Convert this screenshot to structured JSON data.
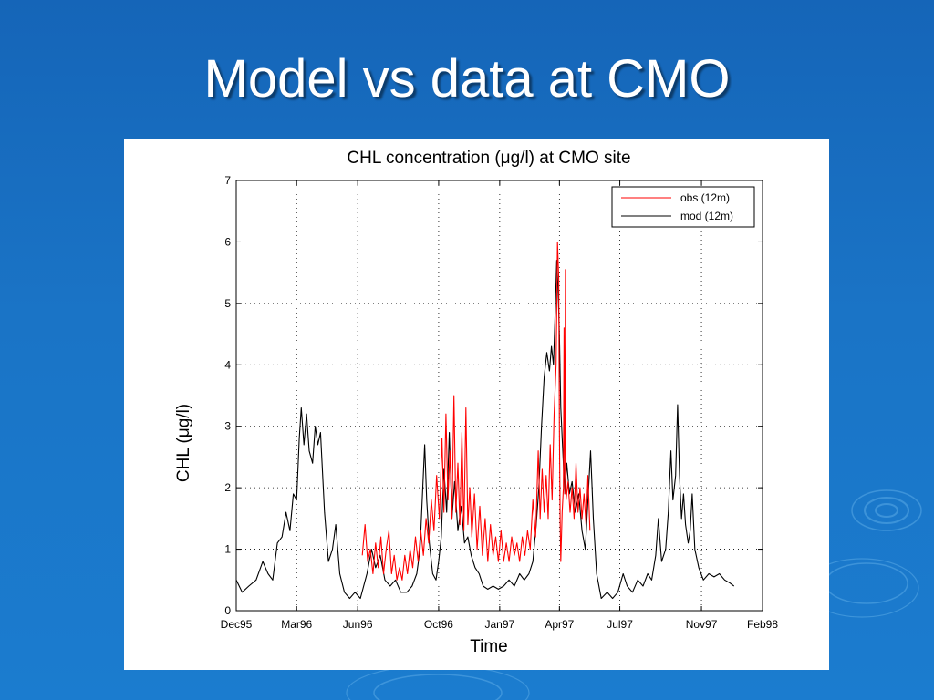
{
  "slide": {
    "title": "Model vs data at CMO"
  },
  "colors": {
    "background": "#1a6fc1",
    "title_text": "#ffffff",
    "obs": "#ff0000",
    "mod": "#000000"
  },
  "chart_data": {
    "type": "line",
    "title": "CHL concentration (μg/l) at CMO site",
    "xlabel": "Time",
    "ylabel": "CHL (μg/l)",
    "xlim": [
      "1995-12-01",
      "1998-02-01"
    ],
    "ylim": [
      0,
      7
    ],
    "x_ticks": [
      {
        "date": "1995-12-01",
        "label": "Dec95"
      },
      {
        "date": "1996-03-01",
        "label": "Mar96"
      },
      {
        "date": "1996-06-01",
        "label": "Jun96"
      },
      {
        "date": "1996-10-01",
        "label": "Oct96"
      },
      {
        "date": "1997-01-01",
        "label": "Jan97"
      },
      {
        "date": "1997-04-01",
        "label": "Apr97"
      },
      {
        "date": "1997-07-01",
        "label": "Jul97"
      },
      {
        "date": "1997-11-01",
        "label": "Nov97"
      },
      {
        "date": "1998-02-01",
        "label": "Feb98"
      }
    ],
    "y_ticks": [
      0,
      1,
      2,
      3,
      4,
      5,
      6,
      7
    ],
    "grid": true,
    "legend_position": "top-right",
    "series": [
      {
        "name": "obs (12m)",
        "color": "#ff0000",
        "points": [
          [
            "1996-06-08",
            0.9
          ],
          [
            "1996-06-12",
            1.4
          ],
          [
            "1996-06-16",
            0.8
          ],
          [
            "1996-06-20",
            1.0
          ],
          [
            "1996-06-24",
            0.6
          ],
          [
            "1996-06-28",
            1.1
          ],
          [
            "1996-07-02",
            0.7
          ],
          [
            "1996-07-06",
            1.2
          ],
          [
            "1996-07-10",
            0.6
          ],
          [
            "1996-07-14",
            1.0
          ],
          [
            "1996-07-18",
            1.3
          ],
          [
            "1996-07-22",
            0.6
          ],
          [
            "1996-07-26",
            0.9
          ],
          [
            "1996-07-30",
            0.5
          ],
          [
            "1996-08-03",
            0.7
          ],
          [
            "1996-08-07",
            0.5
          ],
          [
            "1996-08-11",
            0.9
          ],
          [
            "1996-08-15",
            0.6
          ],
          [
            "1996-08-19",
            1.0
          ],
          [
            "1996-08-23",
            0.7
          ],
          [
            "1996-08-27",
            1.2
          ],
          [
            "1996-08-31",
            0.8
          ],
          [
            "1996-09-04",
            1.3
          ],
          [
            "1996-09-08",
            0.9
          ],
          [
            "1996-09-12",
            1.5
          ],
          [
            "1996-09-16",
            1.1
          ],
          [
            "1996-09-20",
            1.8
          ],
          [
            "1996-09-24",
            1.3
          ],
          [
            "1996-09-28",
            2.2
          ],
          [
            "1996-10-02",
            1.5
          ],
          [
            "1996-10-06",
            2.8
          ],
          [
            "1996-10-09",
            1.6
          ],
          [
            "1996-10-12",
            3.2
          ],
          [
            "1996-10-15",
            1.8
          ],
          [
            "1996-10-18",
            2.6
          ],
          [
            "1996-10-21",
            1.5
          ],
          [
            "1996-10-24",
            3.5
          ],
          [
            "1996-10-27",
            1.6
          ],
          [
            "1996-10-30",
            2.4
          ],
          [
            "1996-11-02",
            1.4
          ],
          [
            "1996-11-05",
            2.9
          ],
          [
            "1996-11-08",
            1.3
          ],
          [
            "1996-11-11",
            3.3
          ],
          [
            "1996-11-14",
            1.4
          ],
          [
            "1996-11-17",
            2.0
          ],
          [
            "1996-11-20",
            1.2
          ],
          [
            "1996-11-24",
            1.9
          ],
          [
            "1996-11-28",
            1.0
          ],
          [
            "1996-12-02",
            1.7
          ],
          [
            "1996-12-06",
            0.9
          ],
          [
            "1996-12-10",
            1.5
          ],
          [
            "1996-12-14",
            0.8
          ],
          [
            "1996-12-18",
            1.4
          ],
          [
            "1996-12-22",
            0.9
          ],
          [
            "1996-12-26",
            1.2
          ],
          [
            "1996-12-30",
            0.8
          ],
          [
            "1997-01-03",
            1.3
          ],
          [
            "1997-01-07",
            0.8
          ],
          [
            "1997-01-11",
            1.1
          ],
          [
            "1997-01-15",
            0.8
          ],
          [
            "1997-01-19",
            1.2
          ],
          [
            "1997-01-23",
            0.9
          ],
          [
            "1997-01-27",
            1.1
          ],
          [
            "1997-01-31",
            0.8
          ],
          [
            "1997-02-04",
            1.2
          ],
          [
            "1997-02-08",
            0.9
          ],
          [
            "1997-02-12",
            1.3
          ],
          [
            "1997-02-16",
            1.0
          ],
          [
            "1997-02-20",
            1.8
          ],
          [
            "1997-02-24",
            1.2
          ],
          [
            "1997-02-28",
            2.6
          ],
          [
            "1997-03-03",
            1.5
          ],
          [
            "1997-03-06",
            2.3
          ],
          [
            "1997-03-09",
            1.6
          ],
          [
            "1997-03-12",
            2.2
          ],
          [
            "1997-03-15",
            1.5
          ],
          [
            "1997-03-18",
            2.7
          ],
          [
            "1997-03-21",
            1.8
          ],
          [
            "1997-03-24",
            3.2
          ],
          [
            "1997-03-27",
            4.0
          ],
          [
            "1997-03-29",
            6.0
          ],
          [
            "1997-03-31",
            5.4
          ],
          [
            "1997-04-01",
            3.0
          ],
          [
            "1997-04-02",
            1.5
          ],
          [
            "1997-04-03",
            0.8
          ],
          [
            "1997-04-05",
            1.6
          ],
          [
            "1997-04-07",
            2.0
          ],
          [
            "1997-04-08",
            4.6
          ],
          [
            "1997-04-09",
            1.9
          ],
          [
            "1997-04-10",
            5.55
          ],
          [
            "1997-04-11",
            1.8
          ],
          [
            "1997-04-14",
            2.1
          ],
          [
            "1997-04-17",
            1.6
          ],
          [
            "1997-04-20",
            2.0
          ],
          [
            "1997-04-23",
            1.5
          ],
          [
            "1997-04-26",
            2.4
          ],
          [
            "1997-04-29",
            1.6
          ],
          [
            "1997-05-02",
            2.0
          ],
          [
            "1997-05-05",
            1.5
          ],
          [
            "1997-05-08",
            1.9
          ],
          [
            "1997-05-11",
            1.4
          ],
          [
            "1997-05-14",
            2.2
          ],
          [
            "1997-05-17",
            1.3
          ]
        ]
      },
      {
        "name": "mod (12m)",
        "color": "#000000",
        "points": [
          [
            "1995-12-01",
            0.5
          ],
          [
            "1995-12-10",
            0.3
          ],
          [
            "1995-12-20",
            0.4
          ],
          [
            "1995-12-31",
            0.5
          ],
          [
            "1996-01-10",
            0.8
          ],
          [
            "1996-01-18",
            0.6
          ],
          [
            "1996-01-25",
            0.5
          ],
          [
            "1996-02-01",
            1.1
          ],
          [
            "1996-02-08",
            1.2
          ],
          [
            "1996-02-14",
            1.6
          ],
          [
            "1996-02-20",
            1.3
          ],
          [
            "1996-02-25",
            1.9
          ],
          [
            "1996-03-01",
            1.8
          ],
          [
            "1996-03-05",
            2.8
          ],
          [
            "1996-03-08",
            3.3
          ],
          [
            "1996-03-12",
            2.7
          ],
          [
            "1996-03-16",
            3.2
          ],
          [
            "1996-03-20",
            2.6
          ],
          [
            "1996-03-25",
            2.4
          ],
          [
            "1996-03-29",
            3.0
          ],
          [
            "1996-04-02",
            2.7
          ],
          [
            "1996-04-06",
            2.9
          ],
          [
            "1996-04-12",
            1.6
          ],
          [
            "1996-04-18",
            0.8
          ],
          [
            "1996-04-24",
            1.0
          ],
          [
            "1996-04-29",
            1.4
          ],
          [
            "1996-05-05",
            0.6
          ],
          [
            "1996-05-12",
            0.3
          ],
          [
            "1996-05-20",
            0.2
          ],
          [
            "1996-05-28",
            0.3
          ],
          [
            "1996-06-05",
            0.2
          ],
          [
            "1996-06-10",
            0.4
          ],
          [
            "1996-06-15",
            0.6
          ],
          [
            "1996-06-22",
            1.0
          ],
          [
            "1996-06-28",
            0.7
          ],
          [
            "1996-07-05",
            0.9
          ],
          [
            "1996-07-12",
            0.5
          ],
          [
            "1996-07-20",
            0.4
          ],
          [
            "1996-07-28",
            0.5
          ],
          [
            "1996-08-05",
            0.3
          ],
          [
            "1996-08-14",
            0.3
          ],
          [
            "1996-08-22",
            0.4
          ],
          [
            "1996-08-29",
            0.6
          ],
          [
            "1996-09-03",
            1.0
          ],
          [
            "1996-09-07",
            2.0
          ],
          [
            "1996-09-10",
            2.7
          ],
          [
            "1996-09-13",
            1.8
          ],
          [
            "1996-09-17",
            1.1
          ],
          [
            "1996-09-22",
            0.6
          ],
          [
            "1996-09-27",
            0.5
          ],
          [
            "1996-10-01",
            0.8
          ],
          [
            "1996-10-05",
            1.2
          ],
          [
            "1996-10-09",
            2.3
          ],
          [
            "1996-10-13",
            1.6
          ],
          [
            "1996-10-17",
            2.9
          ],
          [
            "1996-10-21",
            1.5
          ],
          [
            "1996-10-25",
            2.1
          ],
          [
            "1996-10-30",
            1.3
          ],
          [
            "1996-11-04",
            1.7
          ],
          [
            "1996-11-09",
            1.1
          ],
          [
            "1996-11-14",
            1.2
          ],
          [
            "1996-11-19",
            0.9
          ],
          [
            "1996-11-25",
            0.7
          ],
          [
            "1996-12-01",
            0.6
          ],
          [
            "1996-12-07",
            0.4
          ],
          [
            "1996-12-14",
            0.35
          ],
          [
            "1996-12-22",
            0.4
          ],
          [
            "1996-12-30",
            0.35
          ],
          [
            "1997-01-07",
            0.4
          ],
          [
            "1997-01-15",
            0.5
          ],
          [
            "1997-01-23",
            0.4
          ],
          [
            "1997-01-31",
            0.6
          ],
          [
            "1997-02-07",
            0.5
          ],
          [
            "1997-02-14",
            0.6
          ],
          [
            "1997-02-20",
            0.8
          ],
          [
            "1997-02-25",
            1.4
          ],
          [
            "1997-03-01",
            2.0
          ],
          [
            "1997-03-05",
            3.0
          ],
          [
            "1997-03-09",
            3.8
          ],
          [
            "1997-03-13",
            4.2
          ],
          [
            "1997-03-17",
            3.9
          ],
          [
            "1997-03-20",
            4.3
          ],
          [
            "1997-03-23",
            4.0
          ],
          [
            "1997-03-26",
            5.0
          ],
          [
            "1997-03-28",
            5.7
          ],
          [
            "1997-03-30",
            5.2
          ],
          [
            "1997-04-01",
            4.5
          ],
          [
            "1997-04-03",
            3.3
          ],
          [
            "1997-04-06",
            2.6
          ],
          [
            "1997-04-09",
            1.9
          ],
          [
            "1997-04-12",
            2.4
          ],
          [
            "1997-04-16",
            1.9
          ],
          [
            "1997-04-20",
            2.1
          ],
          [
            "1997-04-25",
            1.6
          ],
          [
            "1997-04-30",
            1.9
          ],
          [
            "1997-05-05",
            1.3
          ],
          [
            "1997-05-10",
            1.0
          ],
          [
            "1997-05-14",
            1.8
          ],
          [
            "1997-05-18",
            2.6
          ],
          [
            "1997-05-22",
            1.5
          ],
          [
            "1997-05-27",
            0.6
          ],
          [
            "1997-06-03",
            0.2
          ],
          [
            "1997-06-12",
            0.3
          ],
          [
            "1997-06-20",
            0.2
          ],
          [
            "1997-06-28",
            0.3
          ],
          [
            "1997-07-06",
            0.6
          ],
          [
            "1997-07-12",
            0.4
          ],
          [
            "1997-07-20",
            0.3
          ],
          [
            "1997-07-28",
            0.5
          ],
          [
            "1997-08-05",
            0.4
          ],
          [
            "1997-08-12",
            0.6
          ],
          [
            "1997-08-18",
            0.5
          ],
          [
            "1997-08-24",
            0.9
          ],
          [
            "1997-08-28",
            1.5
          ],
          [
            "1997-09-02",
            0.8
          ],
          [
            "1997-09-08",
            1.0
          ],
          [
            "1997-09-12",
            1.6
          ],
          [
            "1997-09-16",
            2.6
          ],
          [
            "1997-09-19",
            1.8
          ],
          [
            "1997-09-23",
            2.2
          ],
          [
            "1997-09-26",
            3.35
          ],
          [
            "1997-09-29",
            2.2
          ],
          [
            "1997-10-02",
            1.5
          ],
          [
            "1997-10-05",
            1.9
          ],
          [
            "1997-10-08",
            1.4
          ],
          [
            "1997-10-12",
            1.1
          ],
          [
            "1997-10-15",
            1.3
          ],
          [
            "1997-10-18",
            1.9
          ],
          [
            "1997-10-22",
            1.0
          ],
          [
            "1997-10-28",
            0.7
          ],
          [
            "1997-11-04",
            0.5
          ],
          [
            "1997-11-12",
            0.6
          ],
          [
            "1997-11-20",
            0.55
          ],
          [
            "1997-11-28",
            0.6
          ],
          [
            "1997-12-06",
            0.5
          ],
          [
            "1997-12-14",
            0.45
          ],
          [
            "1997-12-20",
            0.4
          ]
        ]
      }
    ]
  }
}
